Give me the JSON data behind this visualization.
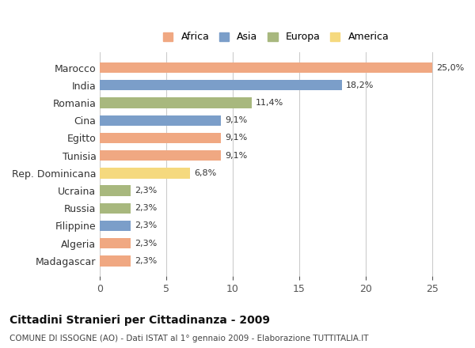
{
  "categories": [
    "Marocco",
    "India",
    "Romania",
    "Cina",
    "Egitto",
    "Tunisia",
    "Rep. Dominicana",
    "Ucraina",
    "Russia",
    "Filippine",
    "Algeria",
    "Madagascar"
  ],
  "values": [
    25.0,
    18.2,
    11.4,
    9.1,
    9.1,
    9.1,
    6.8,
    2.3,
    2.3,
    2.3,
    2.3,
    2.3
  ],
  "labels": [
    "25,0%",
    "18,2%",
    "11,4%",
    "9,1%",
    "9,1%",
    "9,1%",
    "6,8%",
    "2,3%",
    "2,3%",
    "2,3%",
    "2,3%",
    "2,3%"
  ],
  "continents": [
    "Africa",
    "Asia",
    "Europa",
    "Asia",
    "Africa",
    "Africa",
    "America",
    "Europa",
    "Europa",
    "Asia",
    "Africa",
    "Africa"
  ],
  "colors": {
    "Africa": "#F0A882",
    "Asia": "#7B9EC9",
    "Europa": "#A8B87E",
    "America": "#F5D97E"
  },
  "legend_order": [
    "Africa",
    "Asia",
    "Europa",
    "America"
  ],
  "xlim": [
    0,
    26.5
  ],
  "xticks": [
    0,
    5,
    10,
    15,
    20,
    25
  ],
  "title": "Cittadini Stranieri per Cittadinanza - 2009",
  "subtitle": "COMUNE DI ISSOGNE (AO) - Dati ISTAT al 1° gennaio 2009 - Elaborazione TUTTITALIA.IT",
  "bg_color": "#FFFFFF",
  "grid_color": "#CCCCCC",
  "bar_height": 0.6
}
